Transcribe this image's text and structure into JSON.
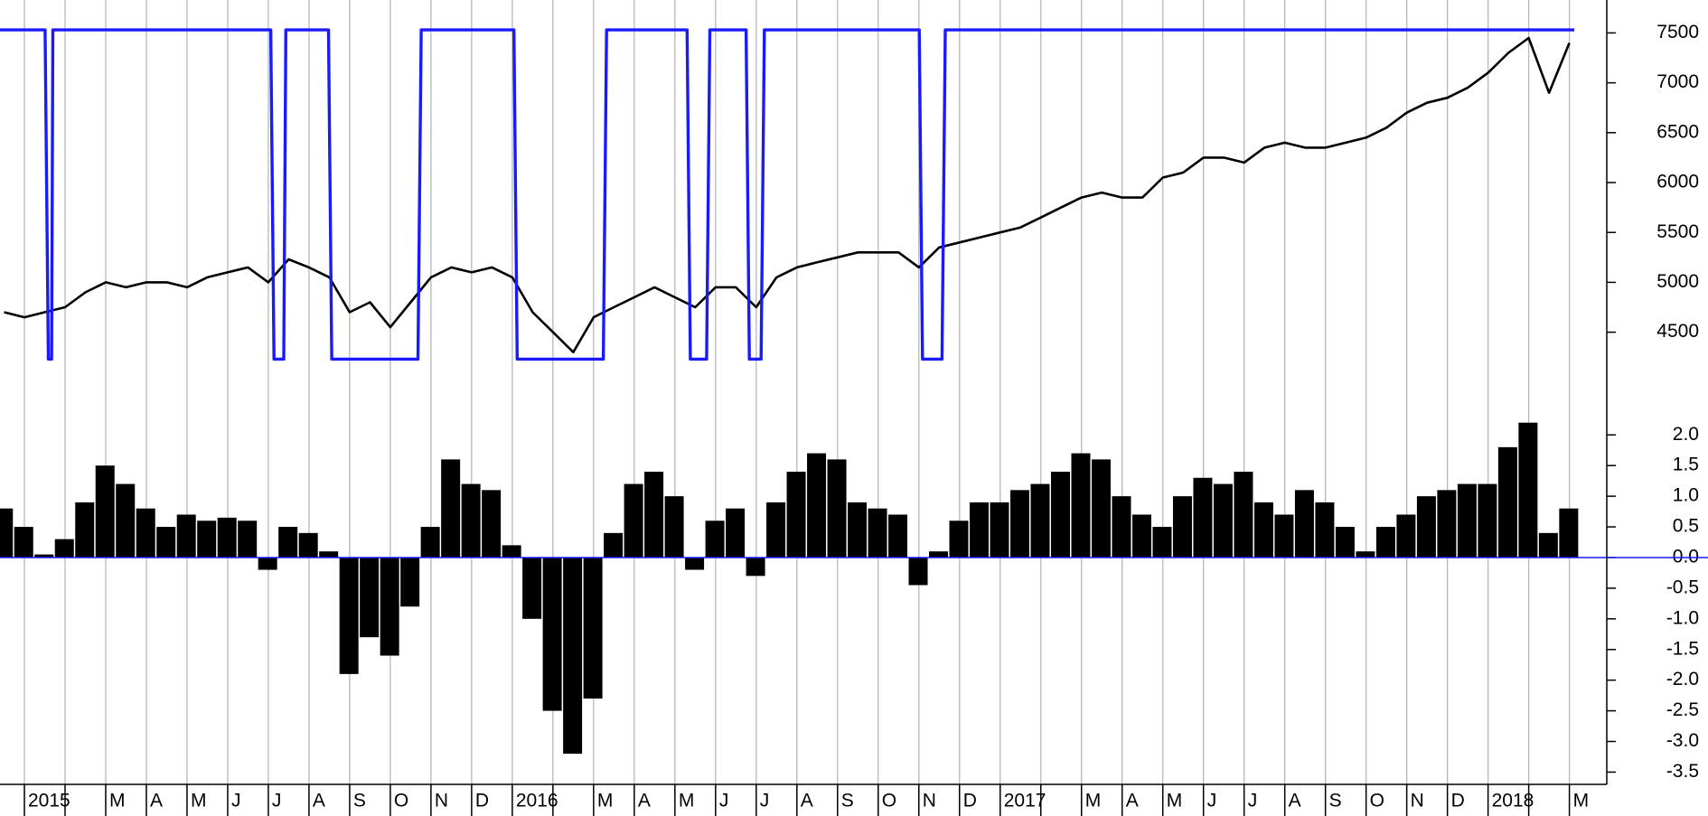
{
  "chart_data": [
    {
      "type": "line",
      "xlim": [
        -0.6,
        38.92
      ],
      "ylim": [
        3790,
        7830
      ],
      "yticks": [
        4500,
        5000,
        5500,
        6000,
        6500,
        7000,
        7500
      ],
      "series": [
        {
          "color": "#000000",
          "x": [
            -0.5,
            0,
            0.5,
            1,
            1.5,
            2,
            2.5,
            3,
            3.5,
            4,
            4.5,
            5,
            5.5,
            6,
            6.5,
            7,
            7.5,
            8,
            8.5,
            9,
            9.5,
            10,
            10.5,
            11,
            11.5,
            12,
            12.5,
            13,
            13.5,
            14,
            14.5,
            15,
            15.5,
            16,
            16.5,
            17,
            17.5,
            18,
            18.5,
            19,
            19.5,
            20,
            20.5,
            21,
            21.5,
            22,
            22.5,
            23,
            23.5,
            24,
            24.5,
            25,
            25.5,
            26,
            26.5,
            27,
            27.5,
            28,
            28.5,
            29,
            29.5,
            30,
            30.5,
            31,
            31.5,
            32,
            32.5,
            33,
            33.5,
            34,
            34.5,
            35,
            35.5,
            36,
            36.5,
            37,
            37.5,
            38
          ],
          "values": [
            4700,
            4650,
            4700,
            4750,
            4900,
            5000,
            4950,
            5000,
            5000,
            4950,
            5050,
            5100,
            5150,
            5000,
            5230,
            5150,
            5050,
            4700,
            4800,
            4550,
            4800,
            5050,
            5150,
            5100,
            5150,
            5050,
            4700,
            4500,
            4300,
            4650,
            4750,
            4850,
            4950,
            4850,
            4750,
            4950,
            4950,
            4750,
            5050,
            5150,
            5200,
            5250,
            5300,
            5300,
            5300,
            5150,
            5350,
            5400,
            5450,
            5500,
            5550,
            5650,
            5750,
            5850,
            5900,
            5850,
            5850,
            6050,
            6100,
            6250,
            6250,
            6200,
            6350,
            6400,
            6350,
            6350,
            6400,
            6450,
            6550,
            6700,
            6800,
            6850,
            6950,
            7100,
            7300,
            7450,
            6900,
            7400
          ]
        },
        {
          "color": "#1a1aff",
          "x": [
            -0.6,
            0.51,
            0.59,
            0.67,
            0.7,
            6.06,
            6.14,
            6.38,
            6.43,
            7.48,
            7.56,
            9.68,
            9.76,
            12.04,
            12.12,
            14.24,
            14.32,
            16.3,
            16.38,
            16.78,
            16.86,
            17.75,
            17.83,
            18.12,
            18.2,
            22.01,
            22.09,
            22.57,
            22.65,
            38.12
          ],
          "values": [
            7530,
            7530,
            4230,
            4230,
            7530,
            7530,
            4230,
            4230,
            7530,
            7530,
            4230,
            4230,
            7530,
            7530,
            4230,
            4230,
            7530,
            7530,
            4230,
            4230,
            7530,
            7530,
            4230,
            4230,
            7530,
            7530,
            4230,
            4230,
            7530,
            7530
          ]
        }
      ]
    },
    {
      "type": "bar",
      "color": "#000000",
      "xlim": [
        -0.6,
        38.92
      ],
      "ylim": [
        -3.7,
        2.52
      ],
      "yticks": [
        {
          "value": 2,
          "label": "2.0"
        },
        1.5,
        {
          "value": 1,
          "label": "1.0"
        },
        0.5,
        {
          "value": 0,
          "label": "0.0"
        },
        -0.5,
        {
          "value": -1,
          "label": "-1.0"
        },
        -1.5,
        {
          "value": -2,
          "label": "-2.0"
        },
        -2.5,
        {
          "value": -3,
          "label": "-3.0"
        },
        -3.5
      ],
      "xticks": [
        {
          "value": 0,
          "label": "2015"
        },
        {
          "value": 1,
          "label": null
        },
        {
          "value": 2,
          "label": "M"
        },
        {
          "value": 3,
          "label": "A"
        },
        {
          "value": 4,
          "label": "M"
        },
        {
          "value": 5,
          "label": "J"
        },
        {
          "value": 6,
          "label": "J"
        },
        {
          "value": 7,
          "label": "A"
        },
        {
          "value": 8,
          "label": "S"
        },
        {
          "value": 9,
          "label": "O"
        },
        {
          "value": 10,
          "label": "N"
        },
        {
          "value": 11,
          "label": "D"
        },
        {
          "value": 12,
          "label": "2016"
        },
        {
          "value": 13,
          "label": null
        },
        {
          "value": 14,
          "label": "M"
        },
        {
          "value": 15,
          "label": "A"
        },
        {
          "value": 16,
          "label": "M"
        },
        {
          "value": 17,
          "label": "J"
        },
        {
          "value": 18,
          "label": "J"
        },
        {
          "value": 19,
          "label": "A"
        },
        {
          "value": 20,
          "label": "S"
        },
        {
          "value": 21,
          "label": "O"
        },
        {
          "value": 22,
          "label": "N"
        },
        {
          "value": 23,
          "label": "D"
        },
        {
          "value": 24,
          "label": "2017"
        },
        {
          "value": 25,
          "label": null
        },
        {
          "value": 26,
          "label": "M"
        },
        {
          "value": 27,
          "label": "A"
        },
        {
          "value": 28,
          "label": "M"
        },
        {
          "value": 29,
          "label": "J"
        },
        {
          "value": 30,
          "label": "J"
        },
        {
          "value": 31,
          "label": "A"
        },
        {
          "value": 32,
          "label": "S"
        },
        {
          "value": 33,
          "label": "O"
        },
        {
          "value": 34,
          "label": "N"
        },
        {
          "value": 35,
          "label": "D"
        },
        {
          "value": 36,
          "label": "2018"
        },
        {
          "value": 37,
          "label": null
        },
        {
          "value": 38,
          "label": "M"
        }
      ],
      "x": [
        -0.5,
        0,
        0.5,
        1,
        1.5,
        2,
        2.5,
        3,
        3.5,
        4,
        4.5,
        5,
        5.5,
        6,
        6.5,
        7,
        7.5,
        8,
        8.5,
        9,
        9.5,
        10,
        10.5,
        11,
        11.5,
        12,
        12.5,
        13,
        13.5,
        14,
        14.5,
        15,
        15.5,
        16,
        16.5,
        17,
        17.5,
        18,
        18.5,
        19,
        19.5,
        20,
        20.5,
        21,
        21.5,
        22,
        22.5,
        23,
        23.5,
        24,
        24.5,
        25,
        25.5,
        26,
        26.5,
        27,
        27.5,
        28,
        28.5,
        29,
        29.5,
        30,
        30.5,
        31,
        31.5,
        32,
        32.5,
        33,
        33.5,
        34,
        34.5,
        35,
        35.5,
        36,
        36.5,
        37,
        37.5,
        38
      ],
      "values": [
        0.8,
        0.5,
        0.05,
        0.3,
        0.9,
        1.5,
        1.2,
        0.8,
        0.5,
        0.7,
        0.6,
        0.65,
        0.6,
        -0.2,
        0.5,
        0.4,
        0.1,
        -1.9,
        -1.3,
        -1.6,
        -0.8,
        0.5,
        1.6,
        1.2,
        1.1,
        0.2,
        -1.0,
        -2.5,
        -3.2,
        -2.3,
        0.4,
        1.2,
        1.4,
        1.0,
        -0.2,
        0.6,
        0.8,
        -0.3,
        0.9,
        1.4,
        1.7,
        1.6,
        0.9,
        0.8,
        0.7,
        -0.45,
        0.1,
        0.6,
        0.9,
        0.9,
        1.1,
        1.2,
        1.4,
        1.7,
        1.6,
        1.0,
        0.7,
        0.5,
        1.0,
        1.3,
        1.2,
        1.4,
        0.9,
        0.7,
        1.1,
        0.9,
        0.5,
        0.1,
        0.5,
        0.7,
        1.0,
        1.1,
        1.2,
        1.2,
        1.8,
        2.2,
        0.4,
        0.8
      ]
    }
  ]
}
